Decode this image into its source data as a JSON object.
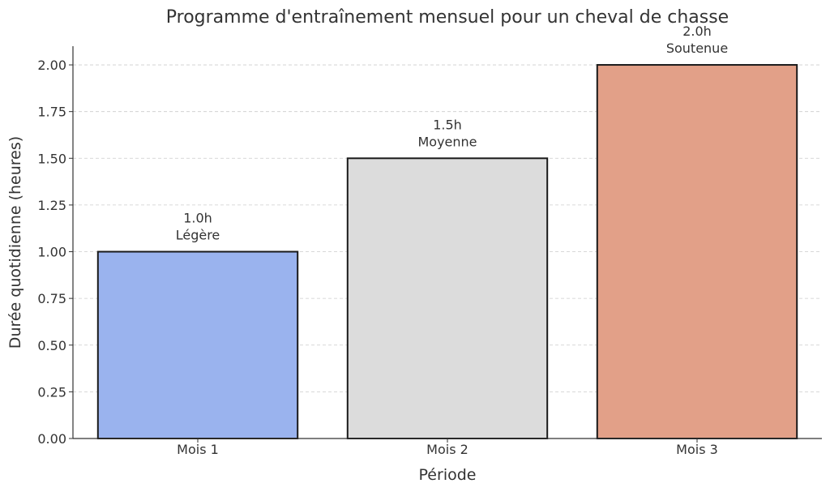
{
  "chart_data": {
    "type": "bar",
    "title": "Programme d'entraînement mensuel pour un cheval de chasse",
    "xlabel": "Période",
    "ylabel": "Durée quotidienne (heures)",
    "categories": [
      "Mois 1",
      "Mois 2",
      "Mois 3"
    ],
    "values": [
      1.0,
      1.5,
      2.0
    ],
    "value_labels": [
      "1.0h",
      "1.5h",
      "2.0h"
    ],
    "intensity_labels": [
      "Légère",
      "Moyenne",
      "Soutenue"
    ],
    "colors": [
      "#9ab3ee",
      "#dcdcdc",
      "#e2a088"
    ],
    "ylim": [
      0,
      2.1
    ],
    "yticks": [
      0,
      0.25,
      0.5,
      0.75,
      1.0,
      1.25,
      1.5,
      1.75,
      2.0
    ],
    "ytick_labels": [
      "0.00",
      "0.25",
      "0.50",
      "0.75",
      "1.00",
      "1.25",
      "1.50",
      "1.75",
      "2.00"
    ],
    "grid": "y-dashed",
    "legend": "none"
  }
}
